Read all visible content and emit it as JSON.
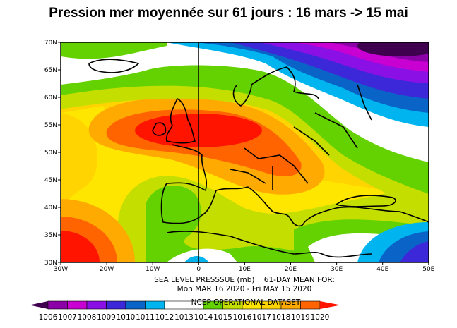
{
  "title": "Pression mer moyennée sur 61 jours : 16 mars -> 15 mai",
  "map": {
    "lat_labels": [
      "70N",
      "65N",
      "60N",
      "55N",
      "50N",
      "45N",
      "40N",
      "35N",
      "30N"
    ],
    "lon_labels": [
      "30W",
      "20W",
      "10W",
      "0",
      "10E",
      "20E",
      "30E",
      "40E",
      "50E"
    ],
    "extent": {
      "lon": [
        -30,
        50
      ],
      "lat": [
        30,
        70
      ]
    },
    "caption_line1": "SEA LEVEL PRESSSUE (mb)    61-DAY MEAN FOR:",
    "caption_line2": "Mon MAR 16 2020 - Fri MAY 15 2020",
    "dataset": "NCEP OPERATIONAL DATASET"
  },
  "colorbar": {
    "labels": [
      "1006",
      "1007",
      "1008",
      "1009",
      "1010",
      "1011",
      "1012",
      "1013",
      "1014",
      "1015",
      "1016",
      "1017",
      "1018",
      "1019",
      "1020"
    ],
    "low_color": "#400050",
    "colors": [
      "#8c00a8",
      "#c800d2",
      "#8a10e6",
      "#3c28d8",
      "#0a64c8",
      "#00b4f0",
      "#ffffff",
      "#ffffff",
      "#64d200",
      "#c4de00",
      "#ffe600",
      "#ffd400",
      "#ffaa00",
      "#ff6400"
    ],
    "high_color": "#ff1400"
  }
}
